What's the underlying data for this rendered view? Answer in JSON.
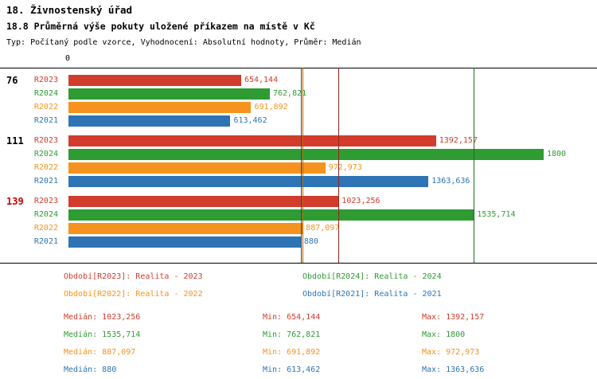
{
  "header": {
    "title": "18. Živnostenský úřad",
    "subtitle": "18.8 Průměrná výše pokuty uložené příkazem na místě v Kč",
    "meta": "Typ: Počítaný podle vzorce, Vyhodnocení: Absolutní hodnoty, Průměr: Medián"
  },
  "chart_data": {
    "type": "bar",
    "orientation": "horizontal",
    "x_axis": {
      "zero_label": "0",
      "min": 0,
      "max": 1800,
      "grid": false
    },
    "series_order": [
      "R2023",
      "R2024",
      "R2022",
      "R2021"
    ],
    "series_colors": {
      "R2023": "#d23c2c",
      "R2024": "#2f9b33",
      "R2022": "#f6921e",
      "R2021": "#2e74b5"
    },
    "median_line_colors": {
      "R2023": "#93261c",
      "R2024": "#1f6b23",
      "R2022": "#b06512",
      "R2021": "#1d4e79"
    },
    "groups": [
      {
        "label": "76",
        "label_color": "#000000",
        "bars": [
          {
            "series": "R2023",
            "value": 654.144,
            "display": "654,144"
          },
          {
            "series": "R2024",
            "value": 762.821,
            "display": "762,821"
          },
          {
            "series": "R2022",
            "value": 691.892,
            "display": "691,892"
          },
          {
            "series": "R2021",
            "value": 613.462,
            "display": "613,462"
          }
        ]
      },
      {
        "label": "111",
        "label_color": "#000000",
        "bars": [
          {
            "series": "R2023",
            "value": 1392.157,
            "display": "1392,157"
          },
          {
            "series": "R2024",
            "value": 1800,
            "display": "1800"
          },
          {
            "series": "R2022",
            "value": 972.973,
            "display": "972,973"
          },
          {
            "series": "R2021",
            "value": 1363.636,
            "display": "1363,636"
          }
        ]
      },
      {
        "label": "139",
        "label_color": "#cc0000",
        "bars": [
          {
            "series": "R2023",
            "value": 1023.256,
            "display": "1023,256"
          },
          {
            "series": "R2024",
            "value": 1535.714,
            "display": "1535,714"
          },
          {
            "series": "R2022",
            "value": 887.097,
            "display": "887,097"
          },
          {
            "series": "R2021",
            "value": 880,
            "display": "880"
          }
        ]
      }
    ],
    "median_lines": [
      {
        "series": "R2023",
        "value": 1023.256
      },
      {
        "series": "R2024",
        "value": 1535.714
      },
      {
        "series": "R2022",
        "value": 887.097
      },
      {
        "series": "R2021",
        "value": 880
      }
    ],
    "legend": [
      {
        "series": "R2023",
        "text": "Období[R2023]: Realita - 2023",
        "row": 0,
        "col": 0
      },
      {
        "series": "R2024",
        "text": "Období[R2024]: Realita - 2024",
        "row": 0,
        "col": 1
      },
      {
        "series": "R2022",
        "text": "Období[R2022]: Realita - 2022",
        "row": 1,
        "col": 0
      },
      {
        "series": "R2021",
        "text": "Období[R2021]: Realita - 2021",
        "row": 1,
        "col": 1
      }
    ],
    "stats": [
      {
        "series": "R2023",
        "median": "Medián: 1023,256",
        "min": "Min: 654,144",
        "max": "Max: 1392,157"
      },
      {
        "series": "R2024",
        "median": "Medián: 1535,714",
        "min": "Min: 762,821",
        "max": "Max: 1800"
      },
      {
        "series": "R2022",
        "median": "Medián: 887,097",
        "min": "Min: 691,892",
        "max": "Max: 972,973"
      },
      {
        "series": "R2021",
        "median": "Medián: 880",
        "min": "Min: 613,462",
        "max": "Max: 1363,636"
      }
    ]
  }
}
